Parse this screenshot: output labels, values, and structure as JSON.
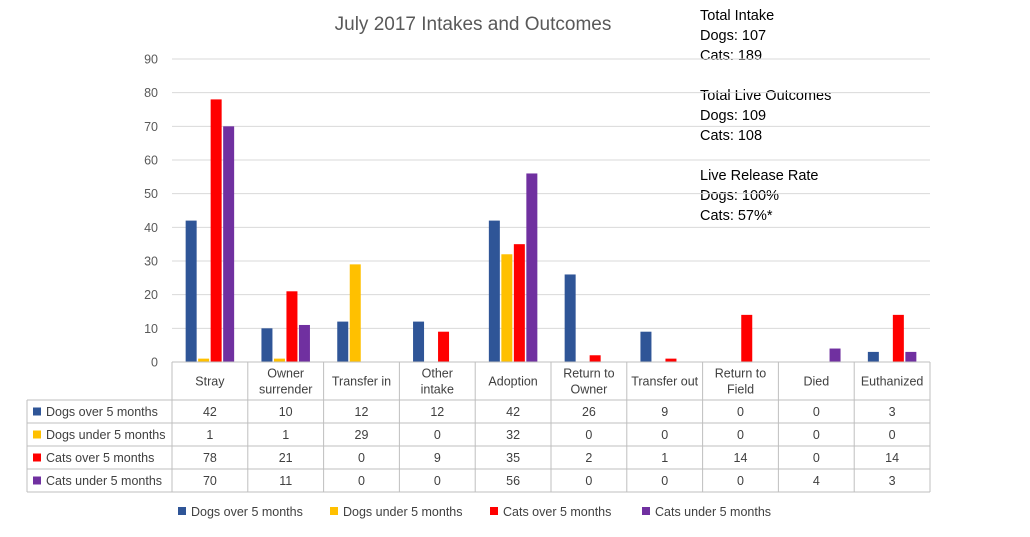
{
  "chart_data": {
    "type": "bar",
    "title": "July 2017 Intakes and Outcomes",
    "ylim": [
      0,
      90
    ],
    "yticks": [
      0,
      10,
      20,
      30,
      40,
      50,
      60,
      70,
      80,
      90
    ],
    "grid": true,
    "legend_position": "bottom",
    "categories": [
      [
        "Stray"
      ],
      [
        "Owner",
        "surrender"
      ],
      [
        "Transfer in"
      ],
      [
        "Other",
        "intake"
      ],
      [
        "Adoption"
      ],
      [
        "Return to",
        "Owner"
      ],
      [
        "Transfer out"
      ],
      [
        "Return to",
        "Field"
      ],
      [
        "Died"
      ],
      [
        "Euthanized"
      ]
    ],
    "series": [
      {
        "name": "Dogs over 5 months",
        "color": "#2F5597",
        "values": [
          42,
          10,
          12,
          12,
          42,
          26,
          9,
          0,
          0,
          3
        ]
      },
      {
        "name": "Dogs under 5 months",
        "color": "#FFC000",
        "values": [
          1,
          1,
          29,
          0,
          32,
          0,
          0,
          0,
          0,
          0
        ]
      },
      {
        "name": "Cats over 5 months",
        "color": "#FF0000",
        "values": [
          78,
          21,
          0,
          9,
          35,
          2,
          1,
          14,
          0,
          14
        ]
      },
      {
        "name": "Cats under 5 months",
        "color": "#7030A0",
        "values": [
          70,
          11,
          0,
          0,
          56,
          0,
          0,
          0,
          4,
          3
        ]
      }
    ]
  },
  "notes": {
    "intake_title": "Total Intake",
    "intake_dogs": "Dogs: 107",
    "intake_cats": "Cats: 189",
    "live_title": "Total Live Outcomes",
    "live_dogs": "Dogs: 109",
    "live_cats": "Cats: 108",
    "release_title": "Live Release Rate",
    "release_dogs": "Dogs: 100%",
    "release_cats": "Cats: 57%*"
  }
}
